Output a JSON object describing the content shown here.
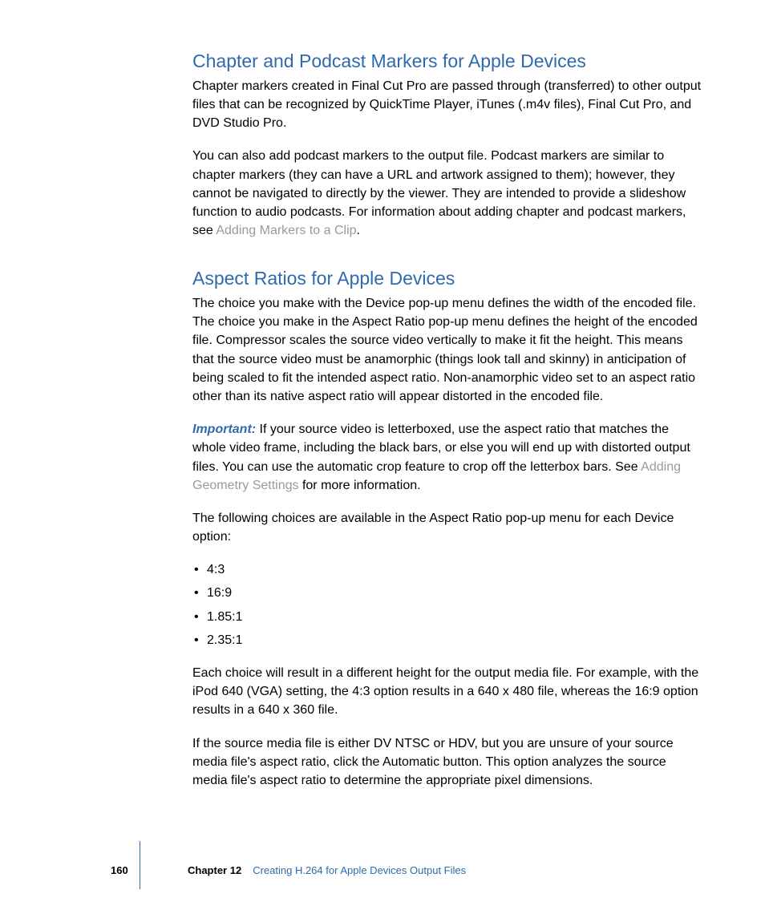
{
  "colors": {
    "heading": "#2f6aab",
    "body_text": "#000000",
    "link": "#9a9a9a",
    "background": "#ffffff",
    "footer_rule": "#2f6aab"
  },
  "typography": {
    "heading_fontsize": 23,
    "body_fontsize": 16,
    "footer_fontsize": 13,
    "body_lineheight": 1.45
  },
  "section1": {
    "heading": "Chapter and Podcast Markers for Apple Devices",
    "p1": "Chapter markers created in Final Cut Pro are passed through (transferred) to other output files that can be recognized by QuickTime Player, iTunes (.m4v files), Final Cut Pro, and DVD Studio Pro.",
    "p2_a": "You can also add podcast markers to the output file. Podcast markers are similar to chapter markers (they can have a URL and artwork assigned to them); however, they cannot be navigated to directly by the viewer. They are intended to provide a slideshow function to audio podcasts. For information about adding chapter and podcast markers, see ",
    "p2_link": "Adding Markers to a Clip",
    "p2_b": "."
  },
  "section2": {
    "heading": "Aspect Ratios for Apple Devices",
    "p1": "The choice you make with the Device pop-up menu defines the width of the encoded file. The choice you make in the Aspect Ratio pop-up menu defines the height of the encoded file. Compressor scales the source video vertically to make it fit the height. This means that the source video must be anamorphic (things look tall and skinny) in anticipation of being scaled to fit the intended aspect ratio. Non-anamorphic video set to an aspect ratio other than its native aspect ratio will appear distorted in the encoded file.",
    "p2_important": "Important:",
    "p2_a": "  If your source video is letterboxed, use the aspect ratio that matches the whole video frame, including the black bars, or else you will end up with distorted output files. You can use the automatic crop feature to crop off the letterbox bars. See ",
    "p2_link": "Adding Geometry Settings",
    "p2_b": " for more information.",
    "p3": "The following choices are available in the Aspect Ratio pop-up menu for each Device option:",
    "ratios": [
      "4:3",
      "16:9",
      "1.85:1",
      "2.35:1"
    ],
    "p4": "Each choice will result in a different height for the output media file. For example, with the iPod 640 (VGA) setting, the 4:3 option results in a 640 x 480 file, whereas the 16:9 option results in a 640 x 360 file.",
    "p5": "If the source media file is either DV NTSC or HDV, but you are unsure of your source media file's aspect ratio, click the Automatic button. This option analyzes the source media file's aspect ratio to determine the appropriate pixel dimensions."
  },
  "footer": {
    "page": "160",
    "chapter_label": "Chapter 12",
    "chapter_title": "Creating H.264 for Apple Devices Output Files"
  }
}
